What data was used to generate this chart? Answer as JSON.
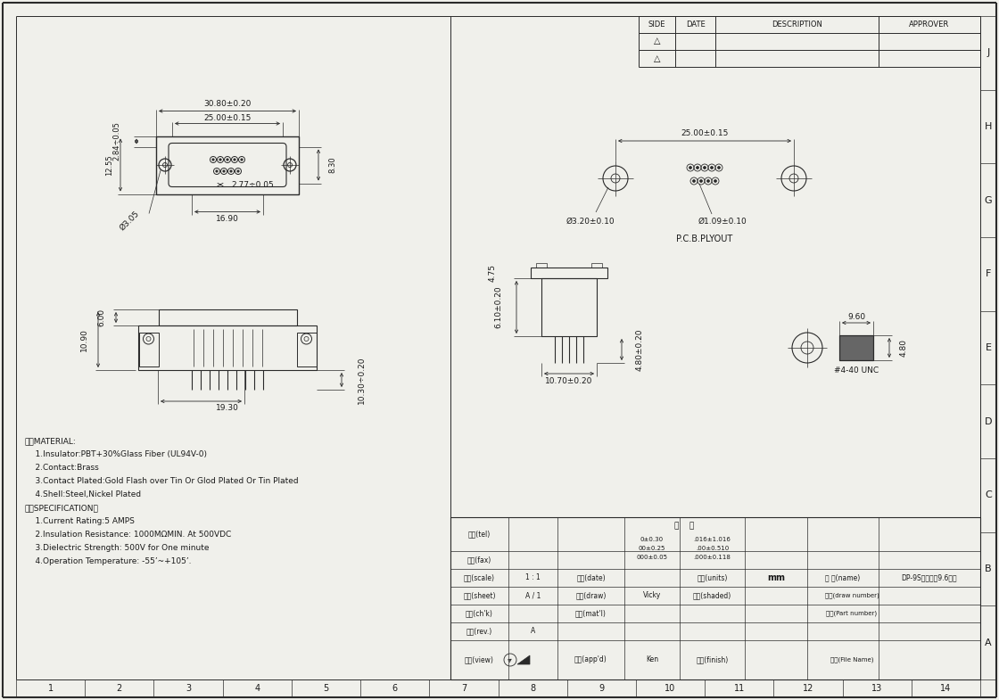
{
  "bg_color": "#f0f0eb",
  "line_color": "#2a2a2a",
  "text_color": "#1a1a1a",
  "dimensions": {
    "top_width": "30.80±0.20",
    "inner_width": "25.00±0.15",
    "left_height1": "2.84÷0.05",
    "left_height2": "12.55",
    "right_height": "8.30",
    "hole_diam": "Ø3.05",
    "pin_spacing": "2.77÷0.05",
    "bottom_width": "16.90",
    "side_height1": "6.00",
    "side_height2": "10.90",
    "bottom_depth": "19.30",
    "side_depth": "10.30÷0.20",
    "pcb_width": "25.00±0.15",
    "pcb_hole1": "Ø3.20±0.10",
    "pcb_hole2": "Ø1.09±0.10",
    "pcb_label": "P.C.B.PLYOUT",
    "front_height": "6.10±0.20",
    "front_depth": "4.80±0.20",
    "front_width": "10.70±0.20",
    "screw_height": "4.75",
    "bolt_width": "9.60",
    "bolt_depth": "4.80",
    "bolt_label": "#4-40 UNC"
  },
  "material_lines": [
    "一、MATERIAL:",
    "    1.Insulator:PBT+30%Glass Fiber (UL94V-0)",
    "    2.Contact:Brass",
    "    3.Contact Plated:Gold Flash over Tin Or Glod Plated Or Tin Plated",
    "    4.Shell:Steel,Nickel Plated",
    "二、SPECIFICATION：",
    "    1.Current Rating:5 AMPS",
    "    2.Insulation Resistance: 1000MΩMIN. At 500VDC",
    "    3.Dielectric Strength: 500V for One minute",
    "    4.Operation Temperature: -55’~+105’."
  ],
  "revision_table": {
    "headers": [
      "SIDE",
      "DATE",
      "DESCRIPTION",
      "APPROVER"
    ],
    "rows": [
      "△",
      "△"
    ]
  },
  "grid_letters": [
    "J",
    "H",
    "G",
    "F",
    "E",
    "D",
    "C",
    "B",
    "A"
  ],
  "grid_numbers": [
    "1",
    "2",
    "3",
    "4",
    "5",
    "6",
    "7",
    "8",
    "9",
    "10",
    "11",
    "12",
    "13",
    "14"
  ],
  "title_block": {
    "phone_label": "电话(tel)",
    "fax_label": "传真(fax)",
    "scale_label": "比例(scale)",
    "scale_val": "1 : 1",
    "date_label": "日期(date)",
    "units_label": "单位(units)",
    "units_val": "mm",
    "name_label": "图 名(name)",
    "name_val": "DP-9S锦盘叉掩9.6螺丝",
    "sheet_label": "次数(sheet)",
    "sheet_val": "A / 1",
    "draw_label": "绘图(draw)",
    "draw_val": "Vicky",
    "shade_label": "颜色(shaded)",
    "draw_num_label": "图号(draw number)",
    "chk_label": "审核(ch'k)",
    "mat_label": "材料(mat'l)",
    "part_num_label": "料号(Part number)",
    "rev_label": "版次(rev.)",
    "rev_val": "A",
    "view_label": "视图(view)",
    "appd_label": "核准(app'd)",
    "appd_val": "Ken",
    "finish_label": "处理(finish)",
    "file_label": "图档(File Name)",
    "company": "公    司",
    "tol1a": "0±0.30",
    "tol2a": "00±0.25",
    "tol3a": "000±0.05",
    "tol1b": ".016±1.016",
    "tol2b": ".00±0.510",
    "tol3b": ".000±0.118"
  }
}
